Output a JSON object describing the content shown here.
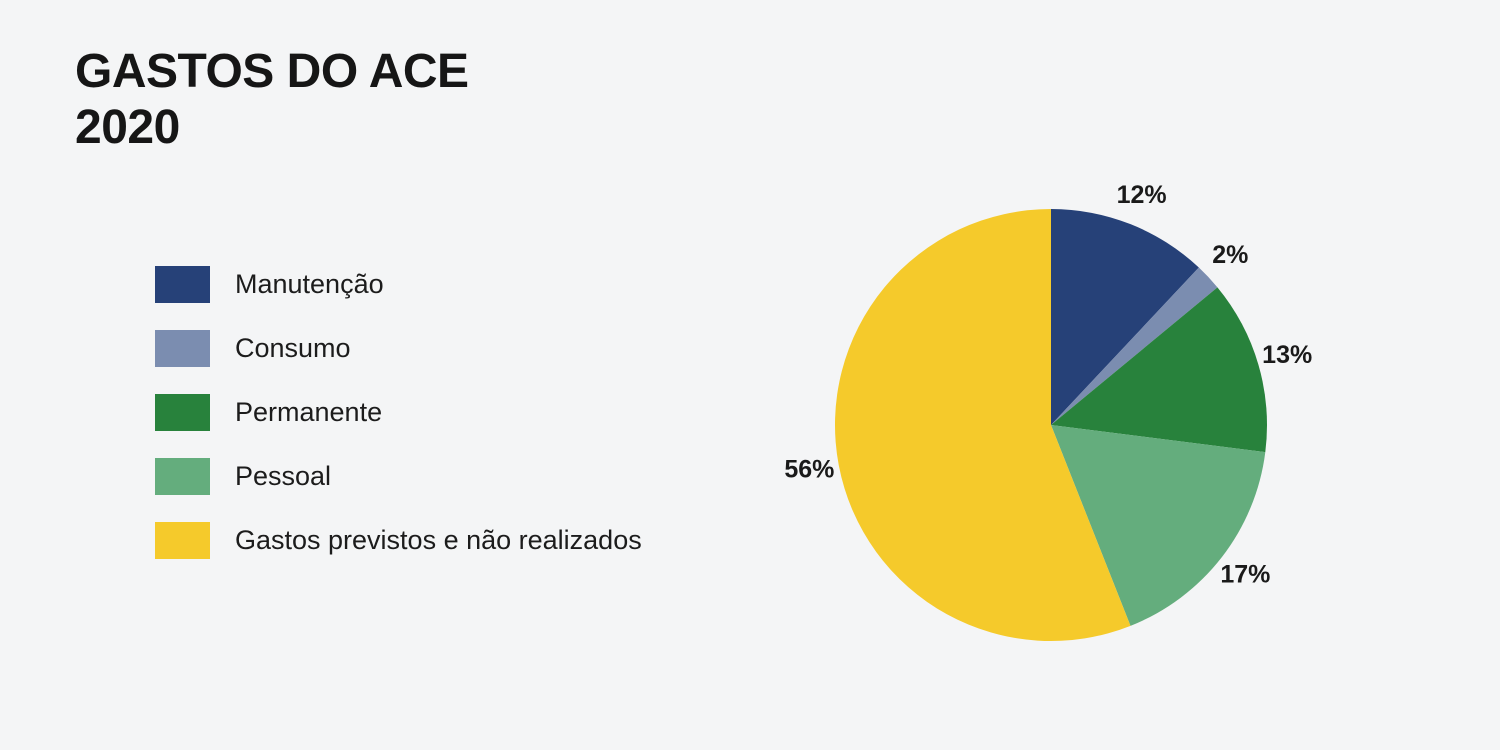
{
  "title": {
    "line1": "GASTOS DO ACE",
    "line2": "2020"
  },
  "colors": {
    "background": "#f4f5f6",
    "text": "#161616"
  },
  "chart_data": {
    "type": "pie",
    "title": "GASTOS DO ACE 2020",
    "legend_position": "left",
    "start_angle_deg": 0,
    "direction": "clockwise",
    "value_label_format": "percent",
    "slices": [
      {
        "label": "Manutenção",
        "value": 12,
        "value_label": "12%",
        "color": "#264178"
      },
      {
        "label": "Consumo",
        "value": 2,
        "value_label": "2%",
        "color": "#7b8db0"
      },
      {
        "label": "Permanente",
        "value": 13,
        "value_label": "13%",
        "color": "#28823c"
      },
      {
        "label": "Pessoal",
        "value": 17,
        "value_label": "17%",
        "color": "#64ad7d"
      },
      {
        "label": "Gastos previstos e não realizados",
        "value": 56,
        "value_label": "56%",
        "color": "#f5ca2b"
      }
    ]
  }
}
